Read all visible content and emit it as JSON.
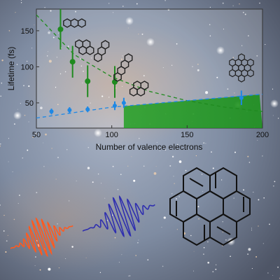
{
  "background": {
    "type": "starfield",
    "base_color": "#7d8a9e"
  },
  "chart_data": {
    "type": "scatter",
    "xlabel": "Number of valence electrons",
    "ylabel": "Lifetime (fs)",
    "xlim": [
      50,
      200
    ],
    "ylim": [
      15,
      180
    ],
    "xticks": [
      50,
      100,
      150,
      200
    ],
    "yticks": [
      50,
      100,
      150
    ],
    "grid": false,
    "series": [
      {
        "color": "#1f8a1f",
        "points": [
          {
            "x": 66,
            "y": 152,
            "err": 28
          },
          {
            "x": 74,
            "y": 107,
            "err": 22
          },
          {
            "x": 84,
            "y": 80,
            "err": 22
          },
          {
            "x": 102,
            "y": 79,
            "err": 22
          }
        ],
        "fit": {
          "style": "dashed",
          "x": [
            50,
            75,
            100,
            125,
            150,
            175,
            200
          ],
          "y": [
            172,
            117,
            86,
            66,
            53,
            44,
            38
          ]
        }
      },
      {
        "color": "#1e88e5",
        "points": [
          {
            "x": 60,
            "y": 38,
            "err": 4
          },
          {
            "x": 72,
            "y": 40,
            "err": 4
          },
          {
            "x": 84,
            "y": 41,
            "err": 4
          },
          {
            "x": 102,
            "y": 46,
            "err": 6
          },
          {
            "x": 108,
            "y": 50,
            "err": 7
          },
          {
            "x": 186,
            "y": 57,
            "err": 10
          }
        ],
        "fit": {
          "style": "dashed",
          "x": [
            50,
            100,
            150,
            200
          ],
          "y": [
            29,
            44,
            53,
            62
          ]
        }
      }
    ],
    "shaded_region": {
      "color": "#22a022",
      "x_from": 108
    }
  },
  "icons": {
    "molecules": [
      "naphthalene-icon",
      "anthracene-icon",
      "tetracene-icon",
      "pentacene-icon",
      "pyrene-icon",
      "hexabenzocoronene-icon"
    ],
    "pulses": [
      {
        "color": "#ff5a1f"
      },
      {
        "color": "#2f2faf"
      }
    ],
    "large_molecule": "coronene-icon"
  }
}
